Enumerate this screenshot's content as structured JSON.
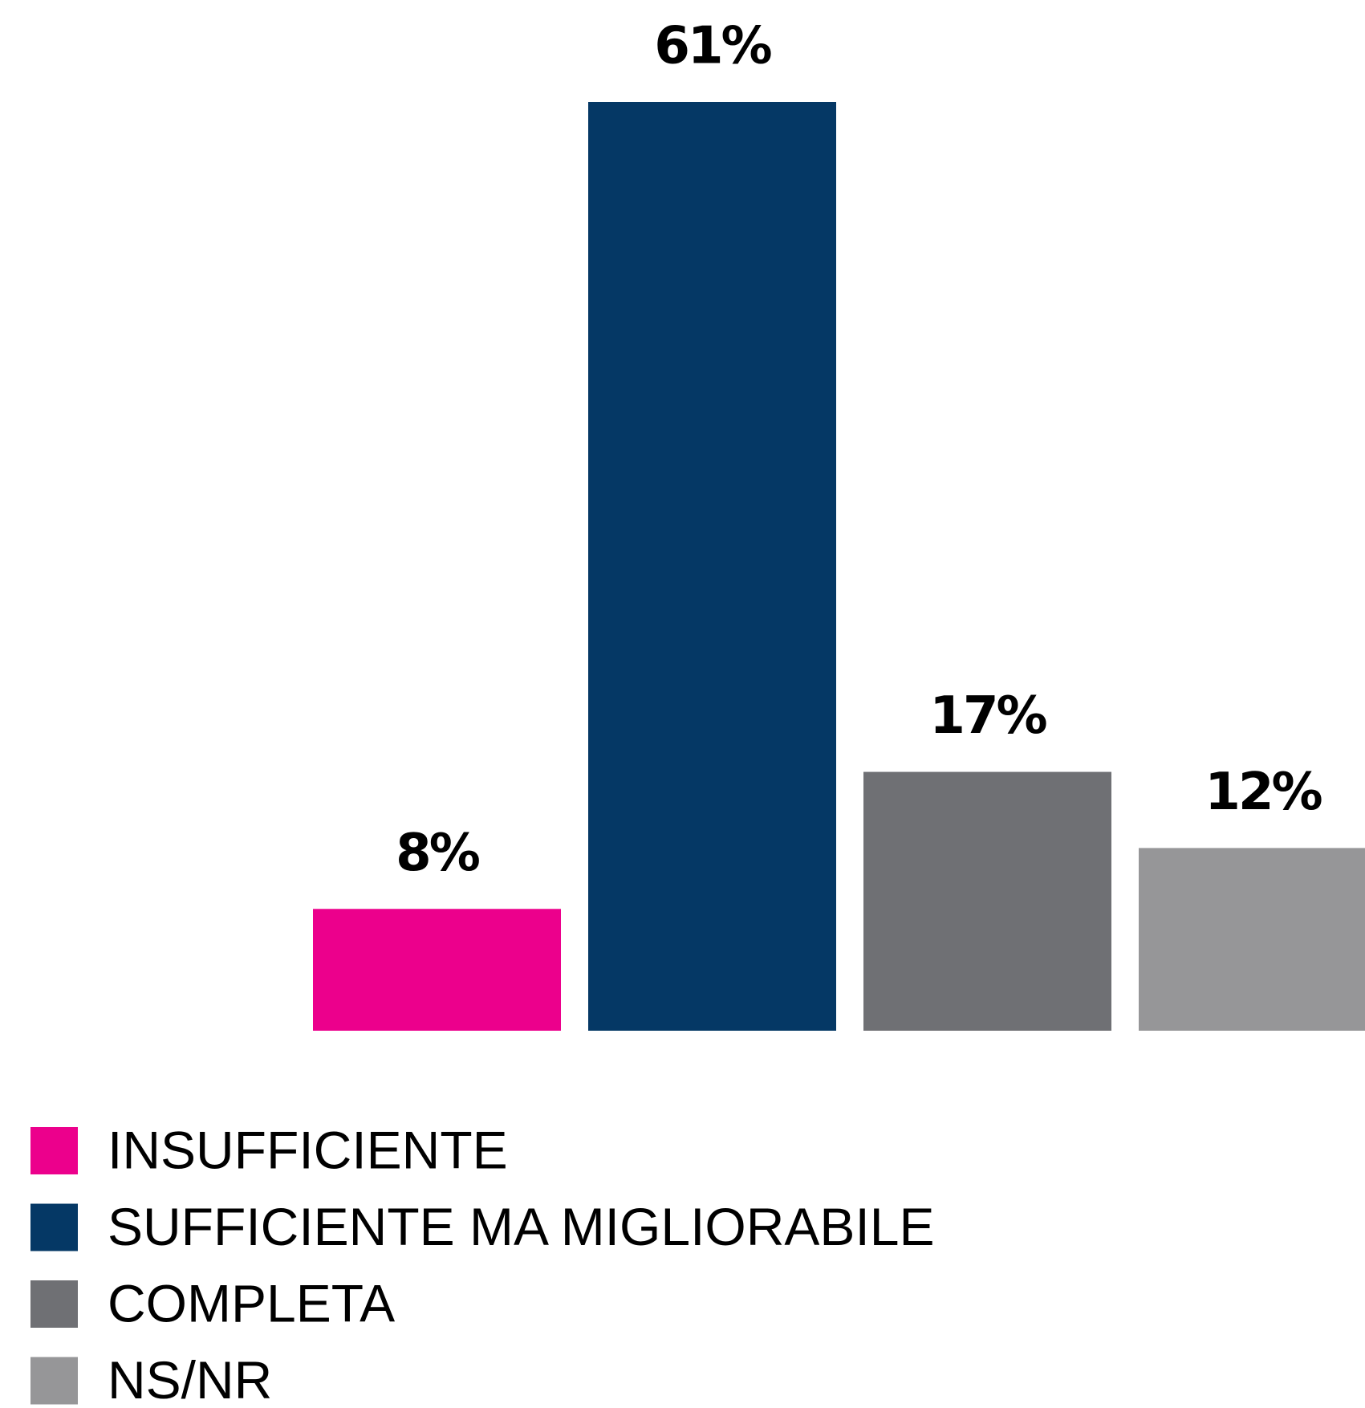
{
  "chart_data": {
    "type": "bar",
    "categories": [
      "INSUFFICIENTE",
      "SUFFICIENTE MA MIGLIORABILE",
      "COMPLETA",
      "NS/NR"
    ],
    "values": [
      8,
      61,
      17,
      12
    ],
    "value_labels": [
      "8%",
      "61%",
      "17%",
      "12%"
    ],
    "colors": [
      "#ec008c",
      "#053865",
      "#6f7074",
      "#969698"
    ],
    "legend": "bottom-left"
  }
}
